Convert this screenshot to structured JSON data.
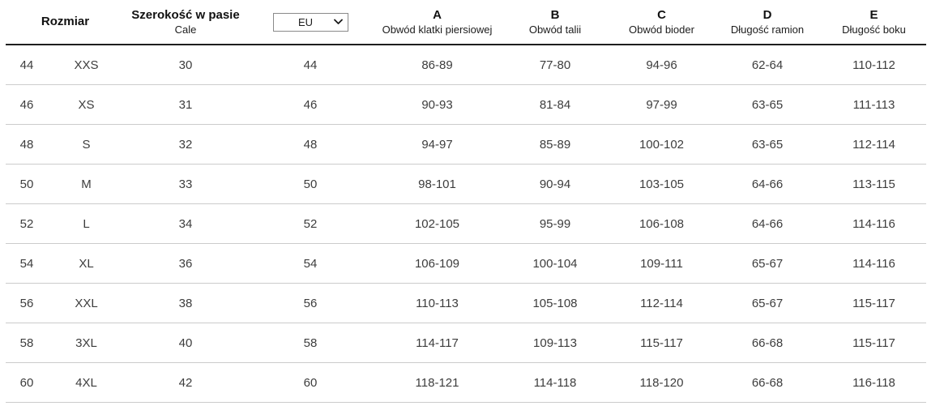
{
  "table": {
    "header": {
      "rozmiar_label": "Rozmiar",
      "szerokosc_title": "Szerokość w pasie",
      "szerokosc_sub": "Cale",
      "unit_select": {
        "value": "EU"
      },
      "measure_cols": [
        {
          "letter": "A",
          "label": "Obwód klatki piersiowej"
        },
        {
          "letter": "B",
          "label": "Obwód talii"
        },
        {
          "letter": "C",
          "label": "Obwód bioder"
        },
        {
          "letter": "D",
          "label": "Długość ramion"
        },
        {
          "letter": "E",
          "label": "Długość boku"
        }
      ]
    },
    "rows": [
      [
        "44",
        "XXS",
        "30",
        "44",
        "86-89",
        "77-80",
        "94-96",
        "62-64",
        "110-112"
      ],
      [
        "46",
        "XS",
        "31",
        "46",
        "90-93",
        "81-84",
        "97-99",
        "63-65",
        "111-113"
      ],
      [
        "48",
        "S",
        "32",
        "48",
        "94-97",
        "85-89",
        "100-102",
        "63-65",
        "112-114"
      ],
      [
        "50",
        "M",
        "33",
        "50",
        "98-101",
        "90-94",
        "103-105",
        "64-66",
        "113-115"
      ],
      [
        "52",
        "L",
        "34",
        "52",
        "102-105",
        "95-99",
        "106-108",
        "64-66",
        "114-116"
      ],
      [
        "54",
        "XL",
        "36",
        "54",
        "106-109",
        "100-104",
        "109-111",
        "65-67",
        "114-116"
      ],
      [
        "56",
        "XXL",
        "38",
        "56",
        "110-113",
        "105-108",
        "112-114",
        "65-67",
        "115-117"
      ],
      [
        "58",
        "3XL",
        "40",
        "58",
        "114-117",
        "109-113",
        "115-117",
        "66-68",
        "115-117"
      ],
      [
        "60",
        "4XL",
        "42",
        "60",
        "118-121",
        "114-118",
        "118-120",
        "66-68",
        "116-118"
      ]
    ],
    "colors": {
      "header_text": "#111111",
      "data_text": "#3d3d3d",
      "header_rule": "#1f1f1f",
      "row_rule": "#cccccc",
      "select_border": "#8a8a8a"
    }
  }
}
